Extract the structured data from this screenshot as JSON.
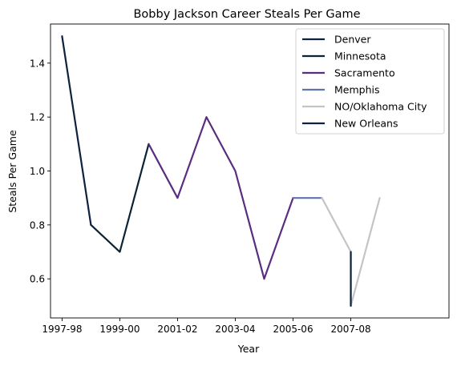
{
  "chart_data": {
    "type": "line",
    "title": "Bobby Jackson  Career Steals Per Game",
    "xlabel": "Year",
    "ylabel": "Steals Per Game",
    "x_tick_labels": [
      "1997-98",
      "1999-00",
      "2001-02",
      "2003-04",
      "2005-06",
      "2007-08"
    ],
    "y_tick_labels": [
      "0.6",
      "0.8",
      "1.0",
      "1.2",
      "1.4"
    ],
    "xlim": [
      1996.6,
      2010.4
    ],
    "ylim": [
      0.455,
      1.545
    ],
    "legend_position": "top-right",
    "series": [
      {
        "name": "Denver",
        "color": "#0E2240",
        "points": [
          [
            1997,
            1.5
          ],
          [
            1998,
            0.8
          ]
        ]
      },
      {
        "name": "Minnesota",
        "color": "#0C2333",
        "points": [
          [
            1998,
            0.8
          ],
          [
            1999,
            0.7
          ],
          [
            2000,
            1.1
          ]
        ]
      },
      {
        "name": "Sacramento",
        "color": "#5A2D81",
        "points": [
          [
            2000,
            1.1
          ],
          [
            2001,
            0.9
          ],
          [
            2002,
            1.2
          ],
          [
            2003,
            1.0
          ],
          [
            2004,
            0.6
          ],
          [
            2005,
            0.9
          ]
        ]
      },
      {
        "name": "Memphis",
        "color": "#5D76A9",
        "points": [
          [
            2005,
            0.9
          ],
          [
            2006,
            0.9
          ]
        ]
      },
      {
        "name": "NO/Oklahoma City",
        "color": "#C4C4C4",
        "points": [
          [
            2006,
            0.9
          ],
          [
            2007,
            0.7
          ],
          [
            2007,
            0.5
          ],
          [
            2008,
            0.9
          ]
        ]
      },
      {
        "name": "New Orleans",
        "color": "#0C2340",
        "points": [
          [
            2007,
            0.7
          ],
          [
            2007,
            0.5
          ]
        ]
      }
    ]
  }
}
